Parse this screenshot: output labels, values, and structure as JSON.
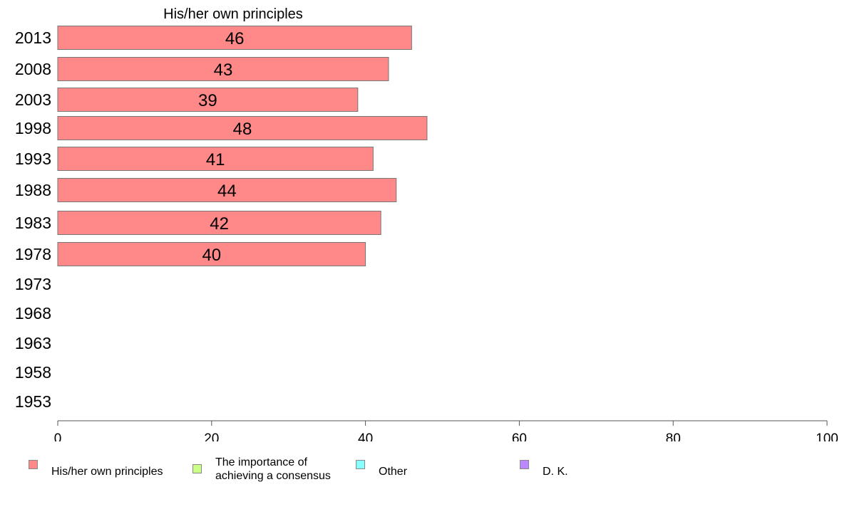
{
  "chart_data": {
    "type": "bar",
    "orientation": "horizontal",
    "title": "His/her own principles",
    "categories": [
      "2013",
      "2008",
      "2003",
      "1998",
      "1993",
      "1988",
      "1983",
      "1978",
      "1973",
      "1968",
      "1963",
      "1958",
      "1953"
    ],
    "series": [
      {
        "name": "His/her own principles",
        "color": "#ff8888",
        "values": [
          46,
          43,
          39,
          48,
          41,
          44,
          42,
          40,
          null,
          null,
          null,
          null,
          null
        ]
      }
    ],
    "data_labels": [
      "46",
      "43",
      "39",
      "48",
      "41",
      "44",
      "42",
      "40",
      "",
      "",
      "",
      "",
      ""
    ],
    "xlim": [
      0,
      100
    ],
    "xticks": [
      "0",
      "20",
      "40",
      "60",
      "80",
      "100"
    ],
    "grid": false,
    "legend_position": "bottom"
  },
  "legend": [
    {
      "label": "His/her own principles",
      "color": "#ff8888"
    },
    {
      "label": "The importance of\nachieving a consensus",
      "color": "#ccff88"
    },
    {
      "label": "Other",
      "color": "#88ffff"
    },
    {
      "label": "D. K.",
      "color": "#bb88ff"
    }
  ]
}
